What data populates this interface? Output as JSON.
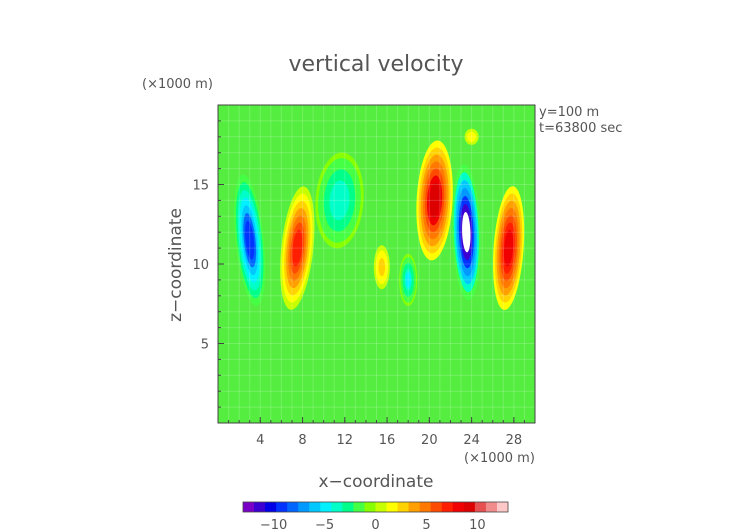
{
  "chart_data": {
    "type": "heatmap",
    "title": "vertical velocity",
    "xlabel": "x−coordinate",
    "ylabel": "z−coordinate",
    "x_unit": "(×1000 m)",
    "y_unit": "(×1000 m)",
    "annotations": [
      "y=100 m",
      "t=63800 sec"
    ],
    "xlim": [
      0,
      30
    ],
    "ylim": [
      0,
      20
    ],
    "xticks": [
      4,
      8,
      12,
      16,
      20,
      24,
      28
    ],
    "yticks": [
      5,
      10,
      15
    ],
    "colorbar": {
      "ticks": [
        -10,
        -5,
        0,
        5,
        10
      ],
      "tick_labels": [
        "−10",
        "−5",
        "0",
        "5",
        "10"
      ],
      "range": [
        -13,
        13
      ],
      "colors": [
        "#7a00c8",
        "#3c00d2",
        "#0000e6",
        "#0033ff",
        "#0066ff",
        "#0099ff",
        "#00c8ff",
        "#00f0ff",
        "#00ffc8",
        "#00ff88",
        "#44ff44",
        "#88ff00",
        "#c8ff00",
        "#ffff00",
        "#ffd200",
        "#ffa000",
        "#ff7800",
        "#ff4b00",
        "#ff1e00",
        "#f00000",
        "#dc0000",
        "#e65050",
        "#f08c8c",
        "#ffc8c8"
      ]
    },
    "features": [
      {
        "x": 3,
        "z": 11.5,
        "w": -9
      },
      {
        "x": 7.5,
        "z": 11,
        "w": 6.5
      },
      {
        "x": 11.5,
        "z": 14,
        "w": -4
      },
      {
        "x": 15.5,
        "z": 9.8,
        "w": 3
      },
      {
        "x": 18,
        "z": 9,
        "w": -4.5
      },
      {
        "x": 20.5,
        "z": 14,
        "w": 9
      },
      {
        "x": 23.5,
        "z": 12,
        "w": -13
      },
      {
        "x": 27.5,
        "z": 11,
        "w": 8
      },
      {
        "x": 24,
        "z": 18,
        "w": 2
      }
    ]
  }
}
